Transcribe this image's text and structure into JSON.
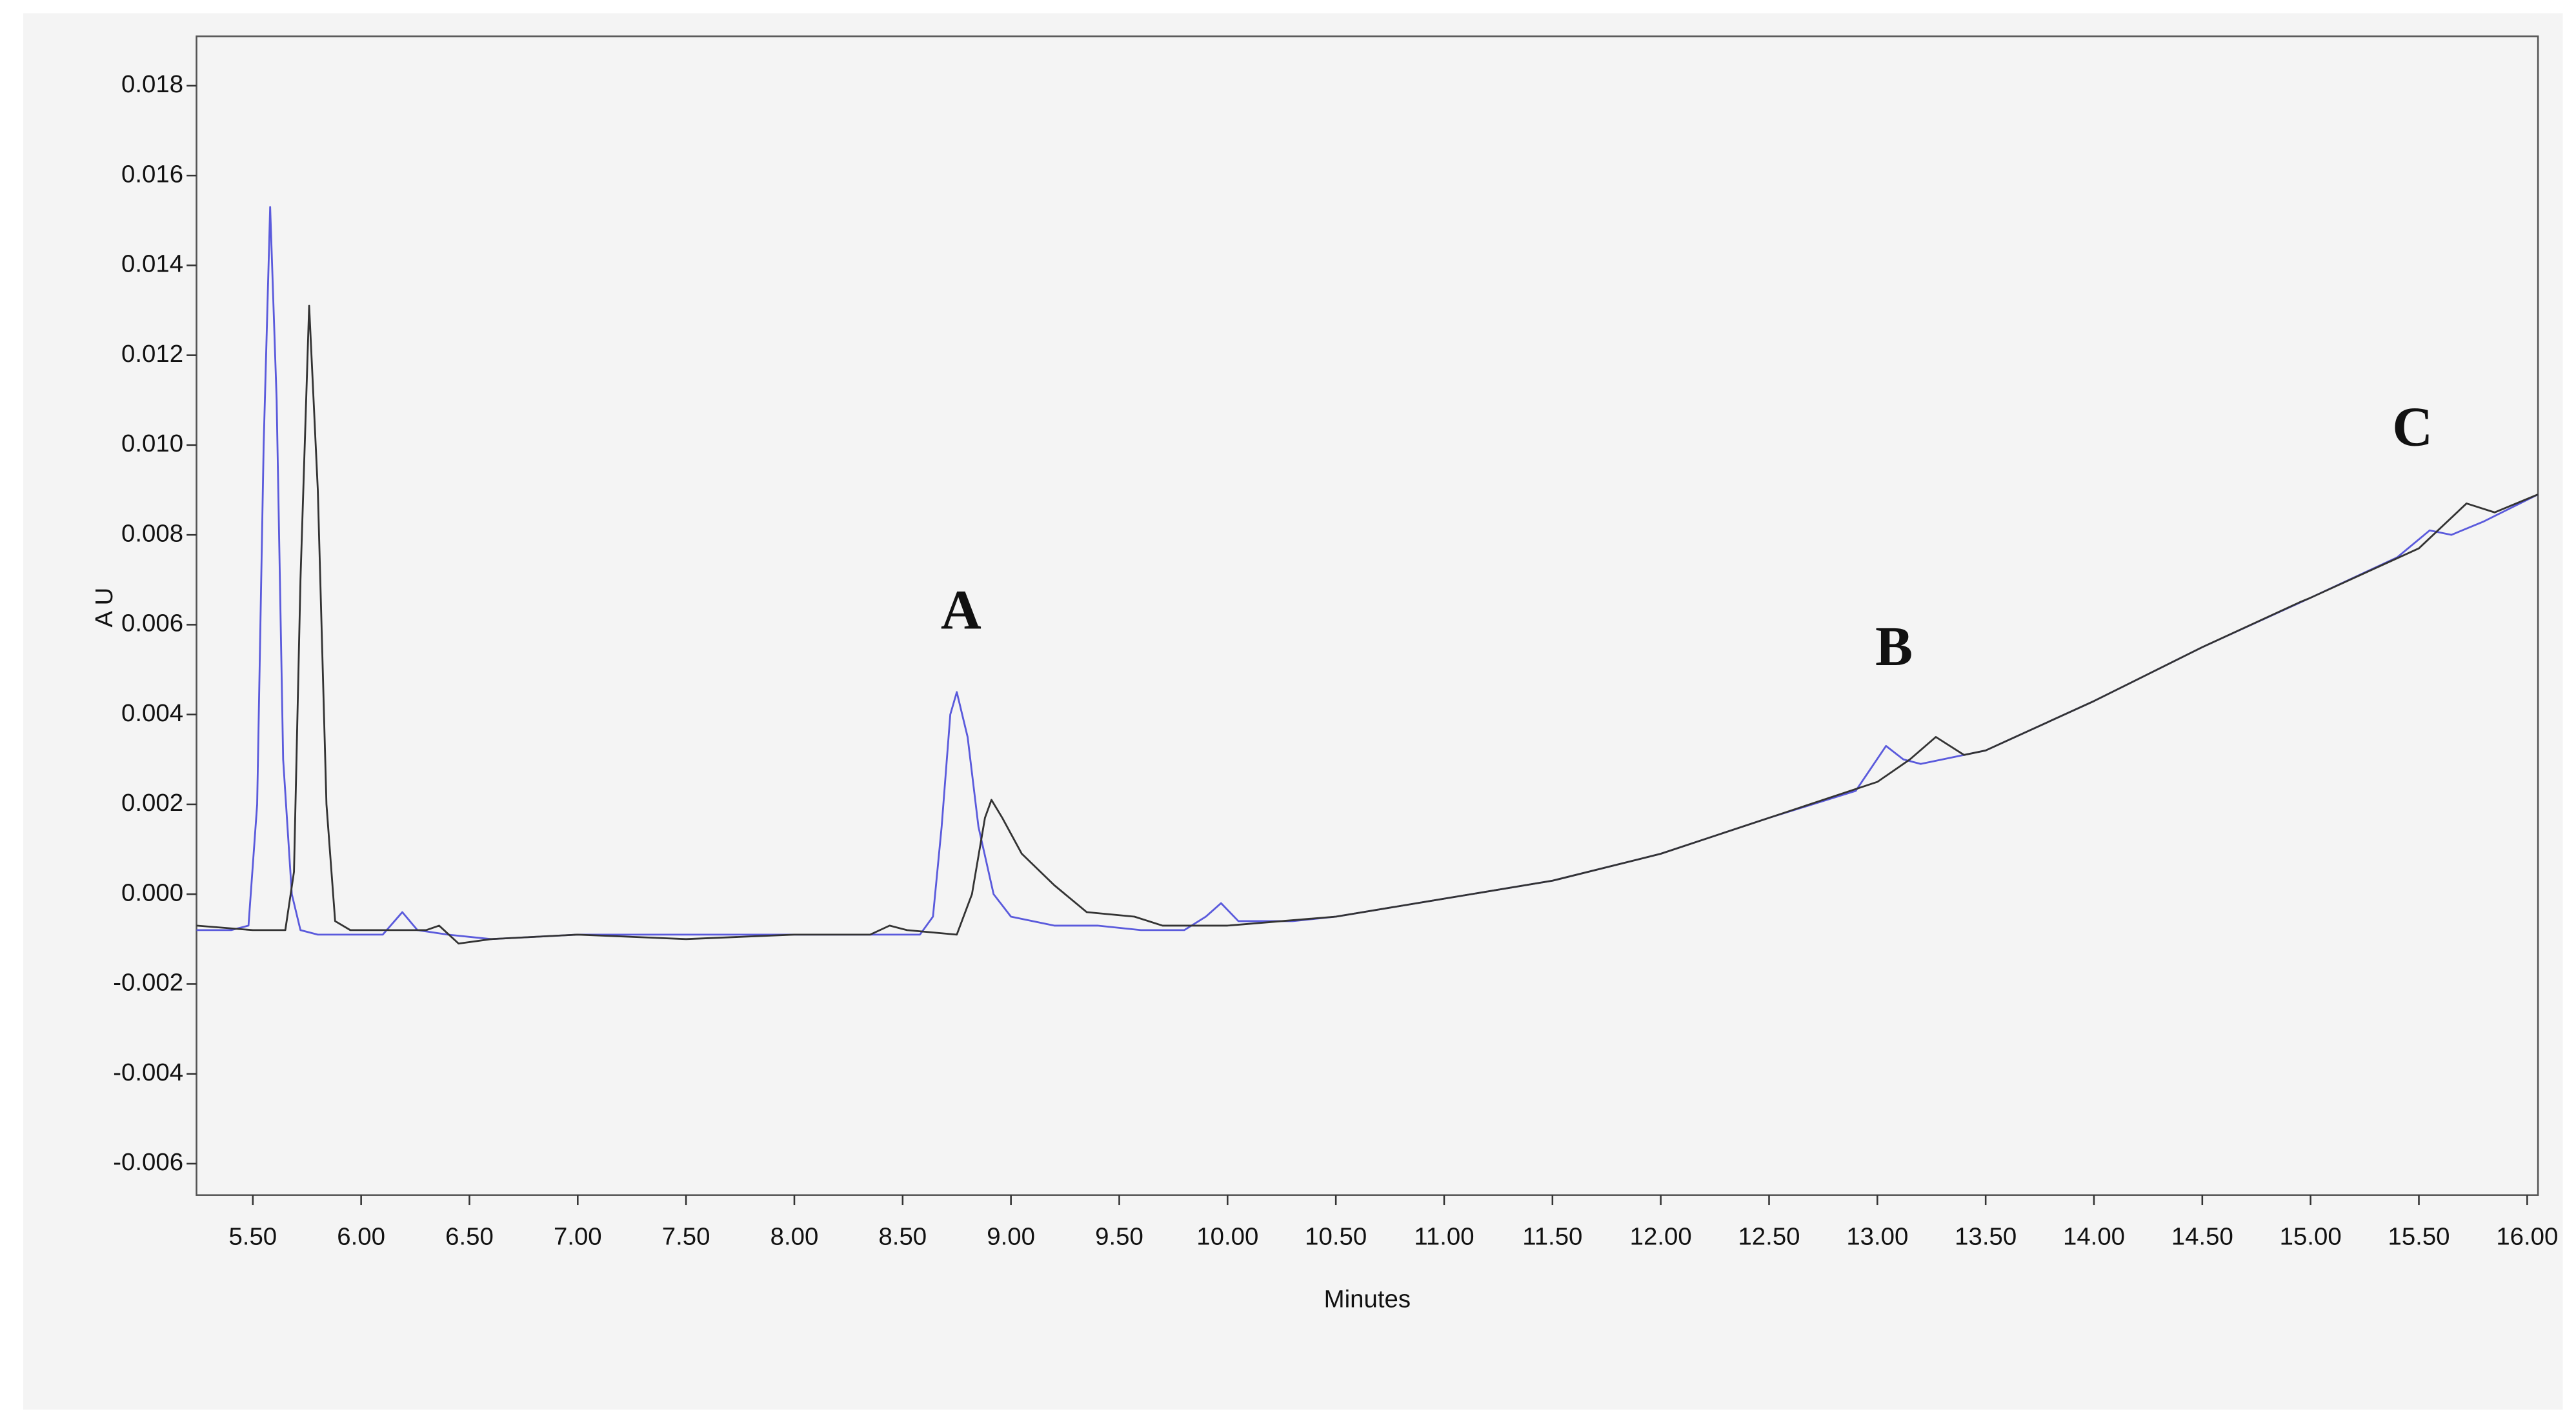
{
  "chart_data": {
    "type": "line",
    "x_label": "Minutes",
    "y_label": "A U",
    "annotations": [
      "A",
      "B",
      "C"
    ],
    "xlim": [
      5.24,
      16.05
    ],
    "ylim": [
      -0.0067,
      0.0191
    ],
    "xticks": [
      {
        "value": 5.5,
        "label": "5.50"
      },
      {
        "value": 6,
        "label": "6.00"
      },
      {
        "value": 6.5,
        "label": "6.50"
      },
      {
        "value": 7,
        "label": "7.00"
      },
      {
        "value": 7.5,
        "label": "7.50"
      },
      {
        "value": 8,
        "label": "8.00"
      },
      {
        "value": 8.5,
        "label": "8.50"
      },
      {
        "value": 9,
        "label": "9.00"
      },
      {
        "value": 9.5,
        "label": "9.50"
      },
      {
        "value": 10,
        "label": "10.00"
      },
      {
        "value": 10.5,
        "label": "10.50"
      },
      {
        "value": 11,
        "label": "11.00"
      },
      {
        "value": 11.5,
        "label": "11.50"
      },
      {
        "value": 12,
        "label": "12.00"
      },
      {
        "value": 12.5,
        "label": "12.50"
      },
      {
        "value": 13,
        "label": "13.00"
      },
      {
        "value": 13.5,
        "label": "13.50"
      },
      {
        "value": 14,
        "label": "14.00"
      },
      {
        "value": 14.5,
        "label": "14.50"
      },
      {
        "value": 15,
        "label": "15.00"
      },
      {
        "value": 15.5,
        "label": "15.50"
      },
      {
        "value": 16,
        "label": "16.00"
      }
    ],
    "yticks": [
      -0.006,
      -0.004,
      -0.002,
      {
        "value": 0,
        "label": "0.000"
      },
      0.002,
      0.004,
      0.006,
      0.008,
      {
        "value": 0.01,
        "label": "0.010"
      },
      0.012,
      0.014,
      0.016,
      0.018
    ],
    "series": [
      {
        "color": "#5a5adc",
        "x": [
          5.24,
          5.4,
          5.48,
          5.52,
          5.55,
          5.58,
          5.61,
          5.64,
          5.68,
          5.72,
          5.8,
          6.1,
          6.19,
          6.26,
          6.4,
          6.6,
          7.0,
          7.5,
          7.75,
          8.0,
          8.4,
          8.58,
          8.64,
          8.68,
          8.72,
          8.75,
          8.8,
          8.85,
          8.92,
          9.0,
          9.2,
          9.4,
          9.6,
          9.8,
          9.9,
          9.97,
          10.05,
          10.3,
          10.5,
          11.0,
          11.5,
          12.0,
          12.5,
          12.9,
          13.04,
          13.12,
          13.2,
          13.5,
          14.0,
          14.5,
          15.0,
          15.4,
          15.55,
          15.65,
          15.8,
          16.05
        ],
        "values": [
          -0.0008,
          -0.0008,
          -0.0007,
          0.002,
          0.01,
          0.0153,
          0.011,
          0.003,
          0.0,
          -0.0008,
          -0.0009,
          -0.0009,
          -0.0004,
          -0.0008,
          -0.0009,
          -0.001,
          -0.0009,
          -0.0009,
          -0.0009,
          -0.0009,
          -0.0009,
          -0.0009,
          -0.0005,
          0.0015,
          0.004,
          0.0045,
          0.0035,
          0.0015,
          0.0,
          -0.0005,
          -0.0007,
          -0.0007,
          -0.0008,
          -0.0008,
          -0.0005,
          -0.0002,
          -0.0006,
          -0.0006,
          -0.0005,
          -0.0001,
          0.0003,
          0.0009,
          0.0017,
          0.0023,
          0.0033,
          0.003,
          0.0029,
          0.0032,
          0.0043,
          0.0055,
          0.0066,
          0.0075,
          0.0081,
          0.008,
          0.0083,
          0.0089
        ]
      },
      {
        "color": "#333333",
        "x": [
          5.24,
          5.5,
          5.65,
          5.69,
          5.72,
          5.76,
          5.8,
          5.84,
          5.88,
          5.95,
          6.3,
          6.36,
          6.45,
          6.6,
          7.0,
          7.5,
          8.0,
          8.35,
          8.44,
          8.52,
          8.75,
          8.82,
          8.88,
          8.91,
          8.96,
          9.05,
          9.2,
          9.35,
          9.57,
          9.7,
          10.0,
          10.5,
          11.0,
          11.5,
          12.0,
          12.5,
          13.0,
          13.15,
          13.27,
          13.4,
          13.5,
          14.0,
          14.5,
          14.95,
          15.0,
          15.5,
          15.72,
          15.85,
          16.05
        ],
        "values": [
          -0.0007,
          -0.0008,
          -0.0008,
          0.0005,
          0.007,
          0.0131,
          0.009,
          0.002,
          -0.0006,
          -0.0008,
          -0.0008,
          -0.0007,
          -0.0011,
          -0.001,
          -0.0009,
          -0.001,
          -0.0009,
          -0.0009,
          -0.0007,
          -0.0008,
          -0.0009,
          0.0,
          0.0017,
          0.0021,
          0.0017,
          0.0009,
          0.0002,
          -0.0004,
          -0.0005,
          -0.0007,
          -0.0007,
          -0.0005,
          -0.0001,
          0.0003,
          0.0009,
          0.0017,
          0.0025,
          0.003,
          0.0035,
          0.0031,
          0.0032,
          0.0043,
          0.0055,
          0.0065,
          0.0066,
          0.0077,
          0.0087,
          0.0085,
          0.0089
        ]
      }
    ]
  }
}
